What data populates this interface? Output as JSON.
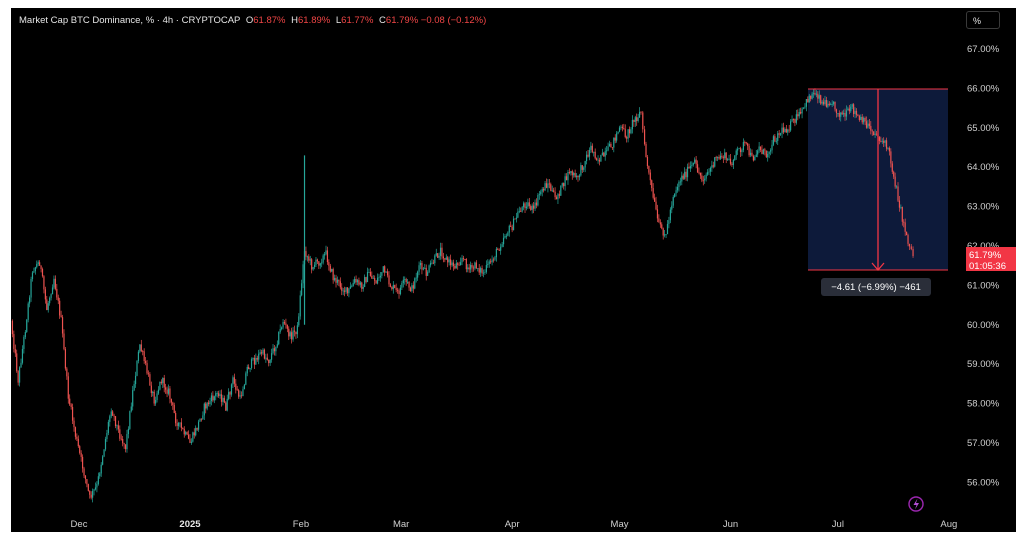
{
  "header": {
    "symbol": "Market Cap BTC Dominance, % · 4h · CRYPTOCAP",
    "open_label": "O",
    "open_value": "61.87%",
    "high_label": "H",
    "high_value": "61.89%",
    "low_label": "L",
    "low_value": "61.77%",
    "close_label": "C",
    "close_value": "61.79%",
    "change": "−0.08 (−0.12%)"
  },
  "toolbar": {
    "scale_button": "%"
  },
  "price_tag": {
    "value": "61.79%",
    "countdown": "01:05:36"
  },
  "measure": {
    "label": "−4.61 (−6.99%) −461"
  },
  "bolt_icon": "lightning-bolt-icon",
  "colors": {
    "background": "#000000",
    "up": "#26a69a",
    "down": "#ef5350",
    "measure_box": "#0d1a3a",
    "measure_line": "#f23645",
    "price_tag": "#f23645"
  },
  "chart_data": {
    "type": "candlestick",
    "title": "Market Cap BTC Dominance, %",
    "interval": "4h",
    "source": "CRYPTOCAP",
    "x_ticks": [
      "Dec",
      "2025",
      "Feb",
      "Mar",
      "Apr",
      "May",
      "Jun",
      "Jul",
      "Aug"
    ],
    "x_bold_ticks": [
      "2025"
    ],
    "y_ticks": [
      "56.00%",
      "57.00%",
      "58.00%",
      "59.00%",
      "60.00%",
      "61.00%",
      "62.00%",
      "63.00%",
      "64.00%",
      "65.00%",
      "66.00%",
      "67.00%"
    ],
    "ylim": [
      55.4,
      68.1
    ],
    "xlim": [
      "2024-11-12",
      "2025-08-03"
    ],
    "grid": false,
    "last_close": 61.79,
    "series": [
      {
        "name": "BTC Dominance (close, approx.)",
        "points": [
          [
            "2024-11-12",
            60.1
          ],
          [
            "2024-11-14",
            58.6
          ],
          [
            "2024-11-16",
            59.9
          ],
          [
            "2024-11-18",
            61.4
          ],
          [
            "2024-11-20",
            61.6
          ],
          [
            "2024-11-22",
            60.4
          ],
          [
            "2024-11-24",
            61.2
          ],
          [
            "2024-11-26",
            60.1
          ],
          [
            "2024-11-28",
            58.2
          ],
          [
            "2024-11-30",
            57.2
          ],
          [
            "2024-12-02",
            56.4
          ],
          [
            "2024-12-04",
            55.6
          ],
          [
            "2024-12-06",
            55.9
          ],
          [
            "2024-12-08",
            56.9
          ],
          [
            "2024-12-10",
            57.9
          ],
          [
            "2024-12-12",
            57.3
          ],
          [
            "2024-12-14",
            56.9
          ],
          [
            "2024-12-16",
            58.3
          ],
          [
            "2024-12-18",
            59.5
          ],
          [
            "2024-12-20",
            58.8
          ],
          [
            "2024-12-22",
            58.1
          ],
          [
            "2024-12-24",
            58.6
          ],
          [
            "2024-12-26",
            58.3
          ],
          [
            "2024-12-28",
            57.6
          ],
          [
            "2024-12-30",
            57.3
          ],
          [
            "2025-01-01",
            57.0
          ],
          [
            "2025-01-03",
            57.4
          ],
          [
            "2025-01-05",
            57.9
          ],
          [
            "2025-01-07",
            58.1
          ],
          [
            "2025-01-09",
            58.3
          ],
          [
            "2025-01-11",
            57.9
          ],
          [
            "2025-01-13",
            58.6
          ],
          [
            "2025-01-15",
            58.1
          ],
          [
            "2025-01-17",
            58.9
          ],
          [
            "2025-01-19",
            59.1
          ],
          [
            "2025-01-21",
            59.3
          ],
          [
            "2025-01-23",
            59.1
          ],
          [
            "2025-01-25",
            59.5
          ],
          [
            "2025-01-27",
            60.1
          ],
          [
            "2025-01-29",
            59.7
          ],
          [
            "2025-01-31",
            59.9
          ],
          [
            "2025-02-02",
            61.9
          ],
          [
            "2025-02-04",
            61.5
          ],
          [
            "2025-02-06",
            61.6
          ],
          [
            "2025-02-08",
            61.8
          ],
          [
            "2025-02-10",
            61.2
          ],
          [
            "2025-02-12",
            61.0
          ],
          [
            "2025-02-14",
            60.8
          ],
          [
            "2025-02-16",
            61.1
          ],
          [
            "2025-02-18",
            61.0
          ],
          [
            "2025-02-20",
            61.3
          ],
          [
            "2025-02-22",
            61.1
          ],
          [
            "2025-02-24",
            61.4
          ],
          [
            "2025-02-26",
            61.0
          ],
          [
            "2025-02-28",
            60.8
          ],
          [
            "2025-03-02",
            61.1
          ],
          [
            "2025-03-04",
            60.9
          ],
          [
            "2025-03-06",
            61.5
          ],
          [
            "2025-03-08",
            61.3
          ],
          [
            "2025-03-10",
            61.6
          ],
          [
            "2025-03-12",
            61.9
          ],
          [
            "2025-03-14",
            61.6
          ],
          [
            "2025-03-16",
            61.5
          ],
          [
            "2025-03-18",
            61.7
          ],
          [
            "2025-03-20",
            61.4
          ],
          [
            "2025-03-22",
            61.5
          ],
          [
            "2025-03-24",
            61.3
          ],
          [
            "2025-03-26",
            61.6
          ],
          [
            "2025-03-28",
            61.9
          ],
          [
            "2025-03-30",
            62.3
          ],
          [
            "2025-04-01",
            62.5
          ],
          [
            "2025-04-03",
            62.9
          ],
          [
            "2025-04-05",
            63.1
          ],
          [
            "2025-04-07",
            62.9
          ],
          [
            "2025-04-09",
            63.4
          ],
          [
            "2025-04-11",
            63.6
          ],
          [
            "2025-04-13",
            63.2
          ],
          [
            "2025-04-15",
            63.5
          ],
          [
            "2025-04-17",
            63.9
          ],
          [
            "2025-04-19",
            63.7
          ],
          [
            "2025-04-21",
            64.1
          ],
          [
            "2025-04-23",
            64.5
          ],
          [
            "2025-04-25",
            64.2
          ],
          [
            "2025-04-27",
            64.3
          ],
          [
            "2025-04-29",
            64.6
          ],
          [
            "2025-05-01",
            65.0
          ],
          [
            "2025-05-03",
            64.8
          ],
          [
            "2025-05-05",
            65.2
          ],
          [
            "2025-05-07",
            65.4
          ],
          [
            "2025-05-08",
            64.5
          ],
          [
            "2025-05-10",
            63.4
          ],
          [
            "2025-05-12",
            62.5
          ],
          [
            "2025-05-14",
            62.3
          ],
          [
            "2025-05-16",
            63.3
          ],
          [
            "2025-05-18",
            63.7
          ],
          [
            "2025-05-20",
            63.9
          ],
          [
            "2025-05-22",
            64.1
          ],
          [
            "2025-05-24",
            63.7
          ],
          [
            "2025-05-26",
            63.9
          ],
          [
            "2025-05-28",
            64.2
          ],
          [
            "2025-05-30",
            64.3
          ],
          [
            "2025-06-01",
            64.1
          ],
          [
            "2025-06-03",
            64.4
          ],
          [
            "2025-06-05",
            64.6
          ],
          [
            "2025-06-07",
            64.2
          ],
          [
            "2025-06-09",
            64.5
          ],
          [
            "2025-06-11",
            64.3
          ],
          [
            "2025-06-13",
            64.7
          ],
          [
            "2025-06-15",
            64.9
          ],
          [
            "2025-06-17",
            65.0
          ],
          [
            "2025-06-19",
            65.2
          ],
          [
            "2025-06-21",
            65.4
          ],
          [
            "2025-06-23",
            65.8
          ],
          [
            "2025-06-25",
            65.9
          ],
          [
            "2025-06-27",
            65.6
          ],
          [
            "2025-06-29",
            65.7
          ],
          [
            "2025-07-01",
            65.4
          ],
          [
            "2025-07-03",
            65.3
          ],
          [
            "2025-07-05",
            65.5
          ],
          [
            "2025-07-07",
            65.2
          ],
          [
            "2025-07-09",
            65.1
          ],
          [
            "2025-07-11",
            64.9
          ],
          [
            "2025-07-13",
            64.7
          ],
          [
            "2025-07-15",
            64.5
          ],
          [
            "2025-07-17",
            63.6
          ],
          [
            "2025-07-19",
            62.7
          ],
          [
            "2025-07-21",
            62.0
          ],
          [
            "2025-07-22",
            61.79
          ]
        ]
      }
    ],
    "measure_tool": {
      "from_value": 66.0,
      "to_value": 61.39,
      "from_date": "2025-06-21",
      "to_date": "2025-07-22",
      "change": -4.61,
      "change_pct": -6.99,
      "bars": -461
    }
  }
}
